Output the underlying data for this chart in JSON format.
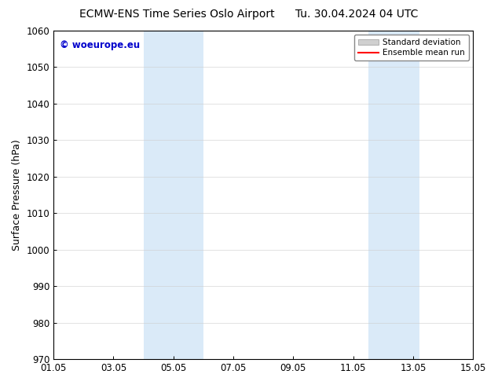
{
  "title_left": "ECMW-ENS Time Series Oslo Airport",
  "title_right": "Tu. 30.04.2024 04 UTC",
  "ylabel": "Surface Pressure (hPa)",
  "ylim": [
    970,
    1060
  ],
  "yticks": [
    970,
    980,
    990,
    1000,
    1010,
    1020,
    1030,
    1040,
    1050,
    1060
  ],
  "xtick_labels": [
    "01.05",
    "03.05",
    "05.05",
    "07.05",
    "09.05",
    "11.05",
    "13.05",
    "15.05"
  ],
  "xtick_days": [
    1,
    3,
    5,
    7,
    9,
    11,
    13,
    15
  ],
  "xlim_days": [
    1,
    15
  ],
  "shaded_regions": [
    {
      "start_day": 4,
      "end_day": 6
    },
    {
      "start_day": 11.5,
      "end_day": 13.2
    }
  ],
  "shaded_color": "#daeaf8",
  "watermark_text": "© woeurope.eu",
  "watermark_color": "#0000cc",
  "legend_std_color": "#d0d0d0",
  "legend_mean_color": "#ff0000",
  "bg_color": "#ffffff",
  "title_fontsize": 10,
  "axis_fontsize": 9,
  "tick_fontsize": 8.5
}
